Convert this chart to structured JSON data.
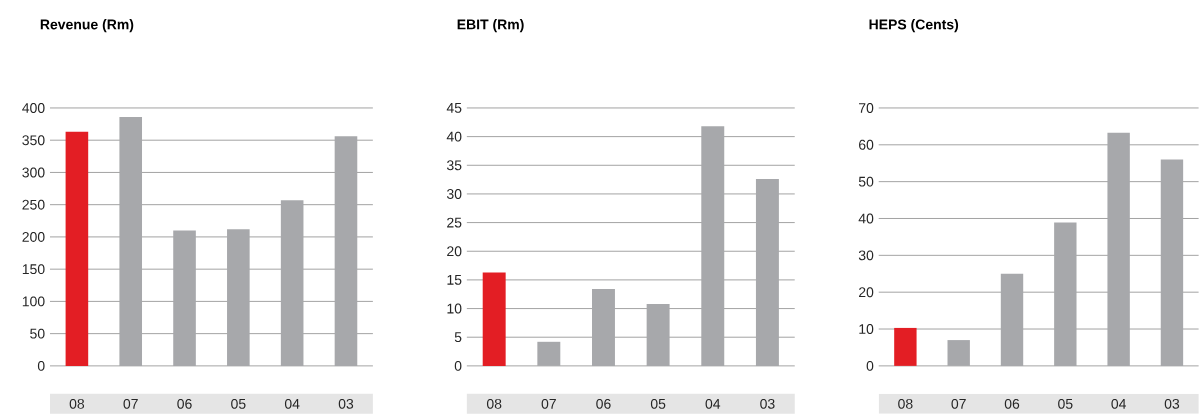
{
  "chart_data": [
    {
      "type": "bar",
      "title": "Revenue (Rm)",
      "categories": [
        "08",
        "07",
        "06",
        "05",
        "04",
        "03"
      ],
      "values": [
        363,
        386,
        210,
        212,
        257,
        356
      ],
      "colors": [
        "#e31e24",
        "#a7a8ab",
        "#a7a8ab",
        "#a7a8ab",
        "#a7a8ab",
        "#a7a8ab"
      ],
      "ylim": [
        0,
        400
      ],
      "yticks": [
        0,
        50,
        100,
        150,
        200,
        250,
        300,
        350,
        400
      ],
      "grid": "y"
    },
    {
      "type": "bar",
      "title": "EBIT (Rm)",
      "categories": [
        "08",
        "07",
        "06",
        "05",
        "04",
        "03"
      ],
      "values": [
        16.3,
        4.2,
        13.4,
        10.8,
        41.8,
        32.6
      ],
      "colors": [
        "#e31e24",
        "#a7a8ab",
        "#a7a8ab",
        "#a7a8ab",
        "#a7a8ab",
        "#a7a8ab"
      ],
      "ylim": [
        0,
        45
      ],
      "yticks": [
        0,
        5,
        10,
        15,
        20,
        25,
        30,
        35,
        40,
        45
      ],
      "grid": "y"
    },
    {
      "type": "bar",
      "title": "HEPS (Cents)",
      "categories": [
        "08",
        "07",
        "06",
        "05",
        "04",
        "03"
      ],
      "values": [
        10.3,
        7.0,
        25.0,
        38.9,
        63.3,
        56.0
      ],
      "colors": [
        "#e31e24",
        "#a7a8ab",
        "#a7a8ab",
        "#a7a8ab",
        "#a7a8ab",
        "#a7a8ab"
      ],
      "ylim": [
        0,
        70
      ],
      "yticks": [
        0,
        10,
        20,
        30,
        40,
        50,
        60,
        70
      ],
      "grid": "y"
    }
  ]
}
